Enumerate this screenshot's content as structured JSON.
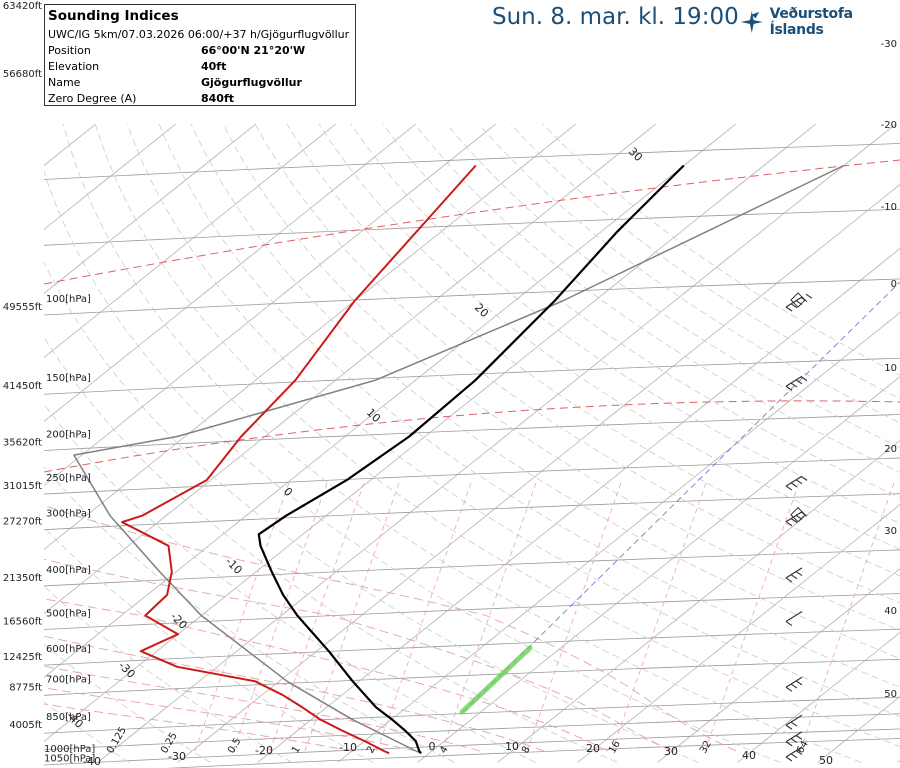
{
  "header": {
    "title": "Sun. 8. mar. kl. 19:00",
    "brand": "Veðurstofa Íslands"
  },
  "info": {
    "title": "Sounding Indices",
    "subtitle": "UWC/IG 5km/07.03.2026 06:00/+37 h/Gjögurflugvöllur",
    "rows": [
      {
        "label": "Position",
        "value": "66°00'N 21°20'W"
      },
      {
        "label": "Elevation",
        "value": "40ft"
      },
      {
        "label": "Name",
        "value": "Gjögurflugvöllur"
      },
      {
        "label": "Zero Degree (A)",
        "value": "840ft"
      }
    ]
  },
  "colors": {
    "temperature": "#cc1a1a",
    "dewpoint_line": "#cc1a1a",
    "temp_profile": "#000000",
    "parcel": "#808080",
    "isotherm": "#aaaaaa",
    "dry_adiabat": "#cfcfcf",
    "moist_adiabat": "#e8a2a2",
    "mixing_ratio": "#f0a0b0",
    "brand": "#1c4f78",
    "wind": "#333333"
  },
  "chart_data": {
    "type": "line",
    "diagram": "skew-T log-P",
    "ylabel": "Pressure [hPa] / Altitude [ft]",
    "pressure_levels": [
      {
        "p": 100,
        "label": "100[hPa]",
        "alt": "49555ft"
      },
      {
        "p": 150,
        "label": "150[hPa]",
        "alt": "41450ft"
      },
      {
        "p": 200,
        "label": "200[hPa]",
        "alt": "35620ft"
      },
      {
        "p": 250,
        "label": "250[hPa]",
        "alt": "31015ft"
      },
      {
        "p": 300,
        "label": "300[hPa]",
        "alt": "27270ft"
      },
      {
        "p": 400,
        "label": "400[hPa]",
        "alt": "21350ft"
      },
      {
        "p": 500,
        "label": "500[hPa]",
        "alt": "16560ft"
      },
      {
        "p": 600,
        "label": "600[hPa]",
        "alt": "12425ft"
      },
      {
        "p": 700,
        "label": "700[hPa]",
        "alt": "8775ft"
      },
      {
        "p": 850,
        "label": "850[hPa]",
        "alt": "4005ft"
      },
      {
        "p": 1000,
        "label": "1000[hPa]",
        "alt": ""
      },
      {
        "p": 1050,
        "label": "1050[hPa]",
        "alt": ""
      }
    ],
    "extra_alt_labels": [
      "63420ft",
      "56680ft"
    ],
    "isotherm_labels": [
      "-30",
      "-20",
      "-10",
      "0",
      "10",
      "20",
      "30",
      "40",
      "50"
    ],
    "bottom_temp_labels": [
      "-40",
      "-30",
      "-20",
      "-10",
      "0",
      "10",
      "20",
      "30",
      "40",
      "50"
    ],
    "mixing_ratio_labels": [
      "0.125",
      "0.25",
      "0.5",
      "1",
      "2",
      "4",
      "8",
      "16",
      "32",
      "64"
    ],
    "temperature": [
      {
        "p": 1012,
        "t": -1.0
      },
      {
        "p": 1000,
        "t": -1.6
      },
      {
        "p": 950,
        "t": -3.6
      },
      {
        "p": 900,
        "t": -6.6
      },
      {
        "p": 850,
        "t": -10.0
      },
      {
        "p": 800,
        "t": -13.8
      },
      {
        "p": 700,
        "t": -20.8
      },
      {
        "p": 600,
        "t": -28.5
      },
      {
        "p": 500,
        "t": -38.0
      },
      {
        "p": 450,
        "t": -43.0
      },
      {
        "p": 400,
        "t": -48.0
      },
      {
        "p": 350,
        "t": -53.5
      },
      {
        "p": 330,
        "t": -55.5
      },
      {
        "p": 300,
        "t": -55.0
      },
      {
        "p": 250,
        "t": -53.0
      },
      {
        "p": 200,
        "t": -52.0
      },
      {
        "p": 150,
        "t": -52.5
      },
      {
        "p": 100,
        "t": -55.0
      },
      {
        "p": 70,
        "t": -58.0
      },
      {
        "p": 50,
        "t": -60.0
      }
    ],
    "dewpoint": [
      {
        "p": 1012,
        "t": -5.0
      },
      {
        "p": 1000,
        "t": -6.0
      },
      {
        "p": 950,
        "t": -10.0
      },
      {
        "p": 900,
        "t": -14.5
      },
      {
        "p": 850,
        "t": -19.0
      },
      {
        "p": 800,
        "t": -23.0
      },
      {
        "p": 750,
        "t": -27.5
      },
      {
        "p": 700,
        "t": -33.0
      },
      {
        "p": 650,
        "t": -45.0
      },
      {
        "p": 600,
        "t": -52.0
      },
      {
        "p": 550,
        "t": -50.0
      },
      {
        "p": 500,
        "t": -57.0
      },
      {
        "p": 450,
        "t": -57.5
      },
      {
        "p": 400,
        "t": -60.5
      },
      {
        "p": 350,
        "t": -65.0
      },
      {
        "p": 310,
        "t": -74.5
      },
      {
        "p": 300,
        "t": -73.0
      },
      {
        "p": 250,
        "t": -70.5
      },
      {
        "p": 200,
        "t": -73.0
      },
      {
        "p": 150,
        "t": -75.0
      },
      {
        "p": 100,
        "t": -80.0
      },
      {
        "p": 50,
        "t": -86.0
      }
    ],
    "parcel": [
      {
        "p": 1012,
        "t": -1.0
      },
      {
        "p": 1000,
        "t": -2.0
      },
      {
        "p": 850,
        "t": -15.0
      },
      {
        "p": 700,
        "t": -29.0
      },
      {
        "p": 500,
        "t": -50.0
      },
      {
        "p": 400,
        "t": -62.0
      },
      {
        "p": 300,
        "t": -77.0
      },
      {
        "p": 220,
        "t": -91.0
      },
      {
        "p": 200,
        "t": -81.0
      },
      {
        "p": 150,
        "t": -65.0
      },
      {
        "p": 100,
        "t": -54.0
      },
      {
        "p": 50,
        "t": -40.0
      }
    ],
    "wind_barbs": [
      {
        "p": 1000,
        "dir": 300,
        "kt": 25
      },
      {
        "p": 925,
        "dir": 300,
        "kt": 25
      },
      {
        "p": 850,
        "dir": 300,
        "kt": 20
      },
      {
        "p": 700,
        "dir": 300,
        "kt": 30
      },
      {
        "p": 500,
        "dir": 300,
        "kt": 10
      },
      {
        "p": 400,
        "dir": 270,
        "kt": 25
      },
      {
        "p": 300,
        "dir": 300,
        "kt": 40
      },
      {
        "p": 250,
        "dir": 270,
        "kt": 35
      },
      {
        "p": 150,
        "dir": 270,
        "kt": 35
      },
      {
        "p": 100,
        "dir": 270,
        "kt": 50
      }
    ],
    "tropopause_markers": [
      {
        "p": 300
      },
      {
        "p": 100
      }
    ]
  }
}
